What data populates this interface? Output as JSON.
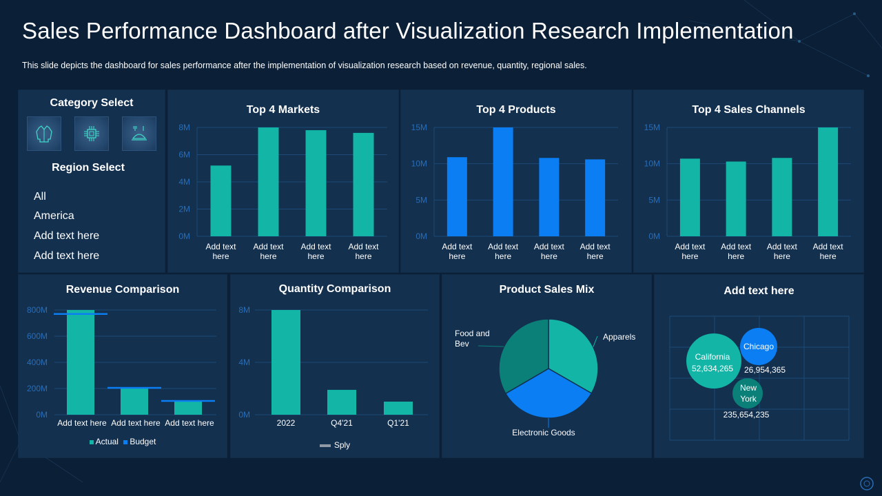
{
  "header": {
    "title": "Sales Performance Dashboard after Visualization Research Implementation",
    "subtitle": "This slide depicts the dashboard for sales performance after the implementation of visualization research based on revenue, quantity, regional sales."
  },
  "sidebar": {
    "category_title": "Category Select",
    "category_icons": [
      "jacket-icon",
      "chip-icon",
      "dining-icon"
    ],
    "region_title": "Region Select",
    "regions": [
      "All",
      "America",
      "Add text here",
      "Add text here"
    ]
  },
  "colors": {
    "teal": "#12b5a6",
    "blue": "#0a7ef2",
    "dark_teal": "#0b8078",
    "axis": "#2a6db5",
    "grid": "#1d4a76"
  },
  "chart_data": [
    {
      "id": "top_markets",
      "type": "bar",
      "title": "Top 4 Markets",
      "categories": [
        "Add text here",
        "Add text here",
        "Add text here",
        "Add text here"
      ],
      "values": [
        5.2,
        8.0,
        7.8,
        7.6
      ],
      "yticks": [
        "0M",
        "2M",
        "4M",
        "6M",
        "8M"
      ],
      "ylim": [
        0,
        8
      ],
      "color": "#12b5a6"
    },
    {
      "id": "top_products",
      "type": "bar",
      "title": "Top 4 Products",
      "categories": [
        "Add text here",
        "Add text here",
        "Add text here",
        "Add text here"
      ],
      "values": [
        10.9,
        15.0,
        10.8,
        10.6
      ],
      "yticks": [
        "0M",
        "5M",
        "10M",
        "15M"
      ],
      "ylim": [
        0,
        15
      ],
      "color": "#0a7ef2"
    },
    {
      "id": "top_channels",
      "type": "bar",
      "title": "Top 4 Sales Channels",
      "categories": [
        "Add text here",
        "Add text here",
        "Add text here",
        "Add text here"
      ],
      "values": [
        10.7,
        10.3,
        10.8,
        15.0
      ],
      "yticks": [
        "0M",
        "5M",
        "10M",
        "15M"
      ],
      "ylim": [
        0,
        15
      ],
      "color": "#12b5a6"
    },
    {
      "id": "revenue",
      "type": "bar",
      "title": "Revenue Comparison",
      "categories": [
        "Add text here",
        "Add text here",
        "Add text here"
      ],
      "series": [
        {
          "name": "Actual",
          "values": [
            800,
            200,
            100
          ],
          "color": "#12b5a6"
        },
        {
          "name": "Budget",
          "values": [
            770,
            205,
            105
          ],
          "color": "#0a7ef2"
        }
      ],
      "yticks": [
        "0M",
        "200M",
        "400M",
        "600M",
        "800M"
      ],
      "ylim": [
        0,
        800
      ]
    },
    {
      "id": "quantity",
      "type": "bar",
      "title": "Quantity Comparison",
      "categories": [
        "2022",
        "Q4'21",
        "Q1'21"
      ],
      "series": [
        {
          "name": "Sply",
          "values": [
            8.0,
            1.9,
            1.0
          ],
          "color": "#12b5a6"
        }
      ],
      "legend_color": "#8f9aa6",
      "yticks": [
        "0M",
        "4M",
        "8M"
      ],
      "ylim": [
        0,
        8
      ]
    },
    {
      "id": "product_mix",
      "type": "pie",
      "title": "Product Sales Mix",
      "slices": [
        {
          "label": "Apparels",
          "value": 33.3,
          "color": "#12b5a6"
        },
        {
          "label": "Electronic Goods",
          "value": 33.3,
          "color": "#0a7ef2"
        },
        {
          "label": "Food and Bev",
          "value": 33.4,
          "color": "#0b8078"
        }
      ]
    },
    {
      "id": "regional",
      "type": "scatter",
      "title": "Add text here",
      "points": [
        {
          "name": "California",
          "value": "52,634,265",
          "color": "#12b5a6"
        },
        {
          "name": "Chicago",
          "value": "26,954,365",
          "color": "#0a7ef2"
        },
        {
          "name": "New York",
          "value": "235,654,235",
          "color": "#0b8078"
        }
      ]
    }
  ]
}
